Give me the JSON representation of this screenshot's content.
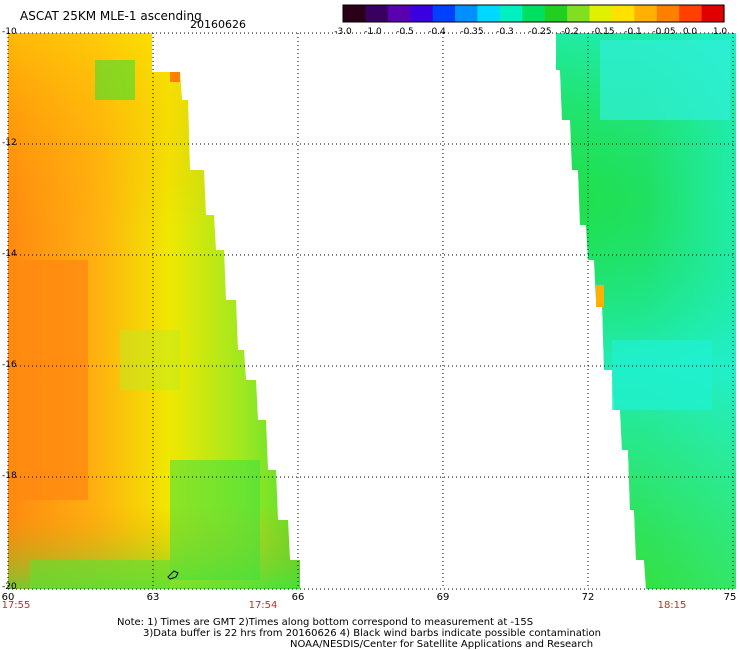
{
  "header": {
    "title": "ASCAT 25KM MLE-1 ascending",
    "date": "20160626"
  },
  "colorbar": {
    "labels": [
      "-3.0",
      "-1.0",
      "-0.5",
      "-0.4",
      "-0.35",
      "-0.3",
      "-0.25",
      "-0.2",
      "-0.15",
      "-0.1",
      "-0.05",
      "0.0",
      "1.0"
    ],
    "colors": [
      "#2a0018",
      "#3a0060",
      "#5a00b0",
      "#3a00e0",
      "#0040ff",
      "#0090ff",
      "#00d8ff",
      "#00f0c0",
      "#00e060",
      "#20d020",
      "#80e020",
      "#e0f000",
      "#ffe000",
      "#ffb000",
      "#ff8000",
      "#ff4000",
      "#e00000"
    ]
  },
  "axes": {
    "lat_labels": [
      "-10",
      "-12",
      "-14",
      "-16",
      "-18",
      "-20"
    ],
    "lon_labels": [
      "60",
      "63",
      "66",
      "69",
      "72",
      "75"
    ],
    "time_labels": [
      {
        "text": "17:55",
        "lon": 60
      },
      {
        "text": "17:54",
        "lon": 65.3
      },
      {
        "text": "18:15",
        "lon": 73.8
      }
    ]
  },
  "notes": {
    "line1": "Note: 1) Times are GMT 2)Times along bottom correspond to measurement at -15S",
    "line2": "3)Data buffer is 22 hrs from 20160626 4) Black wind barbs indicate possible contamination",
    "line3": "NOAA/NESDIS/Center for Satellite Applications and Research"
  }
}
